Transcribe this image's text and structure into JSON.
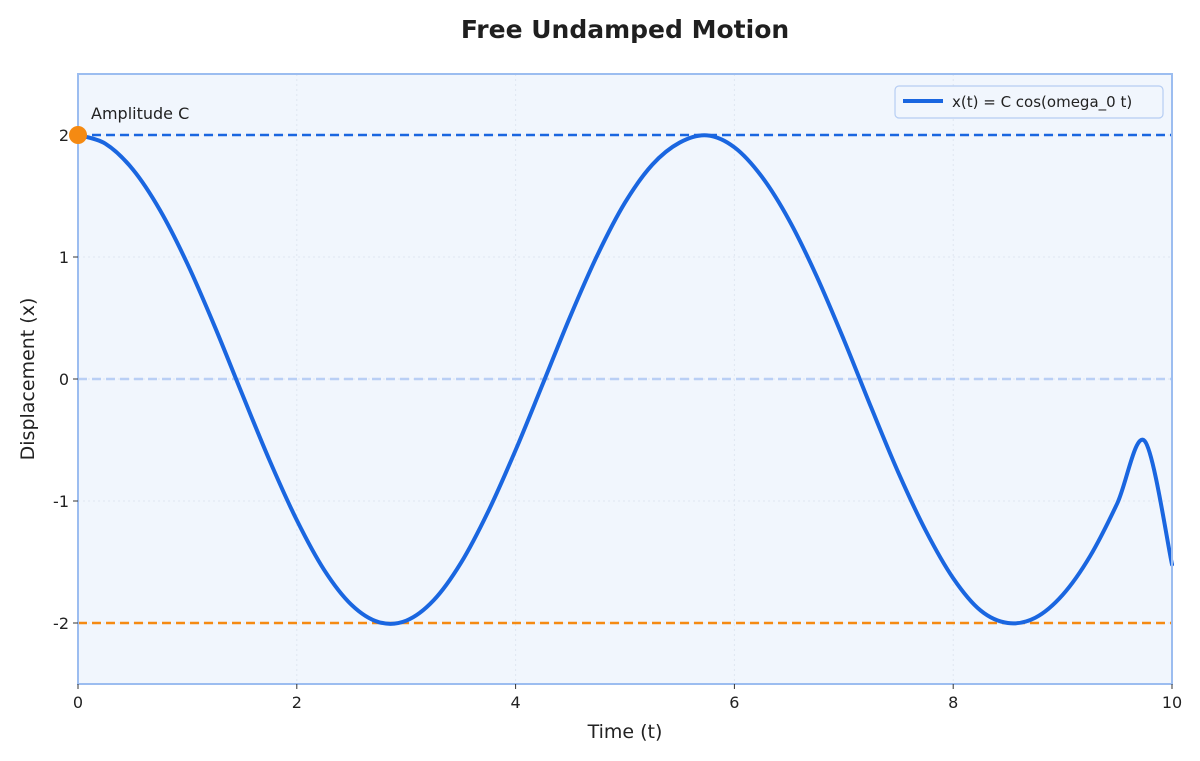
{
  "chart_data": {
    "type": "line",
    "title": "Free Undamped Motion",
    "xlabel": "Time (t)",
    "ylabel": "Displacement (x)",
    "xlim": [
      0,
      10
    ],
    "ylim": [
      -2.5,
      2.5
    ],
    "xticks": [
      0,
      2,
      4,
      6,
      8,
      10
    ],
    "yticks": [
      -2,
      -1,
      0,
      1,
      2
    ],
    "grid": true,
    "legend_position": "top-right",
    "series": [
      {
        "name": "x(t) = C cos(omega_0 t)",
        "color": "#1a66e0",
        "x": [
          0,
          0.25,
          0.5,
          0.75,
          1.0,
          1.25,
          1.5,
          1.75,
          2.0,
          2.25,
          2.5,
          2.75,
          3.0,
          3.25,
          3.5,
          3.75,
          4.0,
          4.25,
          4.5,
          4.75,
          5.0,
          5.25,
          5.5,
          5.75,
          6.0,
          6.25,
          6.5,
          6.75,
          7.0,
          7.25,
          7.5,
          7.75,
          8.0,
          8.25,
          8.5,
          8.75,
          9.0,
          9.25,
          9.5,
          9.75,
          10.0
        ],
        "y": [
          2.0,
          1.929,
          1.719,
          1.383,
          0.944,
          0.43,
          -0.122,
          -0.665,
          -1.157,
          -1.565,
          -1.851,
          -1.993,
          -1.981,
          -1.815,
          -1.508,
          -1.085,
          -0.583,
          -0.037,
          0.514,
          1.02,
          1.446,
          1.757,
          1.938,
          1.997,
          1.899,
          1.659,
          1.302,
          0.846,
          0.323,
          -0.233,
          -0.77,
          -1.245,
          -1.633,
          -1.897,
          -2.0,
          -1.957,
          -1.77,
          -1.454,
          -1.019,
          -0.508,
          -1.52
        ]
      }
    ],
    "reference_lines": [
      {
        "y": 2,
        "color": "#1a66e0",
        "style": "dashed"
      },
      {
        "y": 0,
        "color": "#b9cff5",
        "style": "dashed"
      },
      {
        "y": -2,
        "color": "#f58a12",
        "style": "dashed"
      }
    ],
    "annotations": [
      {
        "text": "Amplitude C",
        "x": 0,
        "y": 2,
        "marker_color": "#f58a12"
      }
    ],
    "colors": {
      "plot_background": "#f1f6fd",
      "frame": "#9cbdf0"
    }
  }
}
